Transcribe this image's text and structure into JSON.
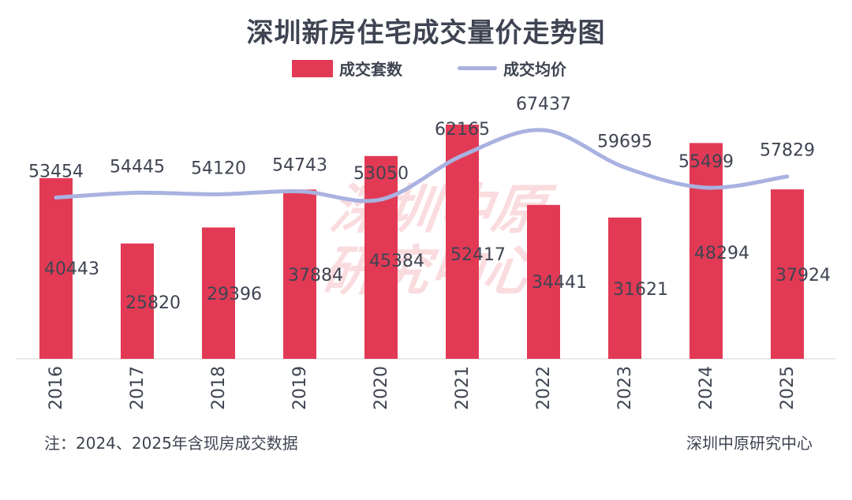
{
  "title": "深圳新房住宅成交量价走势图",
  "legend": {
    "bar_label": "成交套数",
    "line_label": "成交均价"
  },
  "colors": {
    "bar": "#e23a55",
    "line": "#a9b2e0",
    "text": "#3f4452"
  },
  "footnote": "注：2024、2025年含现房成交数据",
  "source": "深圳中原研究中心",
  "watermark": {
    "line1": "深圳中原",
    "line2": "研究中心"
  },
  "chart_data": {
    "type": "bar",
    "categories": [
      "2016",
      "2017",
      "2018",
      "2019",
      "2020",
      "2021",
      "2022",
      "2023",
      "2024",
      "2025"
    ],
    "series": [
      {
        "name": "成交套数",
        "type": "bar",
        "axis": "left",
        "values": [
          40443,
          25820,
          29396,
          37884,
          45384,
          52417,
          34441,
          31621,
          48294,
          37924
        ]
      },
      {
        "name": "成交均价",
        "type": "line",
        "axis": "right",
        "values": [
          53454,
          54445,
          54120,
          54743,
          53050,
          62165,
          67437,
          59695,
          55499,
          57829
        ]
      }
    ],
    "ylim_left": [
      0,
      55000
    ],
    "ylim_right": [
      0,
      110000
    ],
    "grid": false,
    "legend_position": "top-center"
  }
}
